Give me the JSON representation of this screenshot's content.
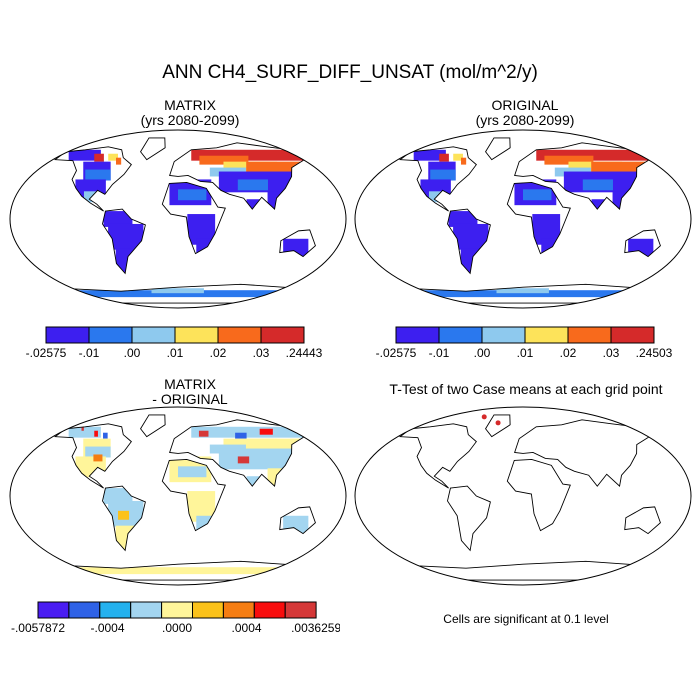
{
  "title": "ANN CH4_SURF_DIFF_UNSAT (mol/m^2/y)",
  "panels": [
    {
      "id": "matrix",
      "title_line1": "MATRIX",
      "title_line2": "(yrs 2080-2099)"
    },
    {
      "id": "original",
      "title_line1": "ORIGINAL",
      "title_line2": "(yrs 2080-2099)"
    },
    {
      "id": "difference",
      "title_line1": "MATRIX",
      "title_line2": "- ORIGINAL"
    },
    {
      "id": "ttest",
      "title_line1": "T-Test of two Case means at each grid point",
      "title_line2": ""
    }
  ],
  "colorbars": [
    {
      "id": "matrix-colorbar",
      "colors": [
        "#3d1ff0",
        "#2a78ee",
        "#8ec9ee",
        "#fde35a",
        "#f86a1c",
        "#d52a2a"
      ],
      "labels": [
        "-.02575",
        "-.01",
        ".00",
        ".01",
        ".02",
        ".03",
        ".24443"
      ]
    },
    {
      "id": "original-colorbar",
      "colors": [
        "#3d1ff0",
        "#2a78ee",
        "#8ec9ee",
        "#fde35a",
        "#f86a1c",
        "#d52a2a"
      ],
      "labels": [
        "-.02575",
        "-.01",
        ".00",
        ".01",
        ".02",
        ".03",
        ".24503"
      ]
    },
    {
      "id": "difference-colorbar",
      "colors": [
        "#4a1df2",
        "#2f62e6",
        "#24b1ee",
        "#a3d5f0",
        "#fff59a",
        "#fbc21a",
        "#f57d12",
        "#f80d0d",
        "#d53838"
      ],
      "labels": [
        "-.0057872",
        "-.0004",
        ".0000",
        ".0004",
        ".0036259"
      ]
    }
  ],
  "ttest_note": "Cells are significant at 0.1 level",
  "colors": {
    "dark_blue": "#3d1ff0",
    "light_blue": "#a3d5f0",
    "yellow": "#fff59a",
    "red": "#d52a2a",
    "orange": "#f86a1c"
  }
}
